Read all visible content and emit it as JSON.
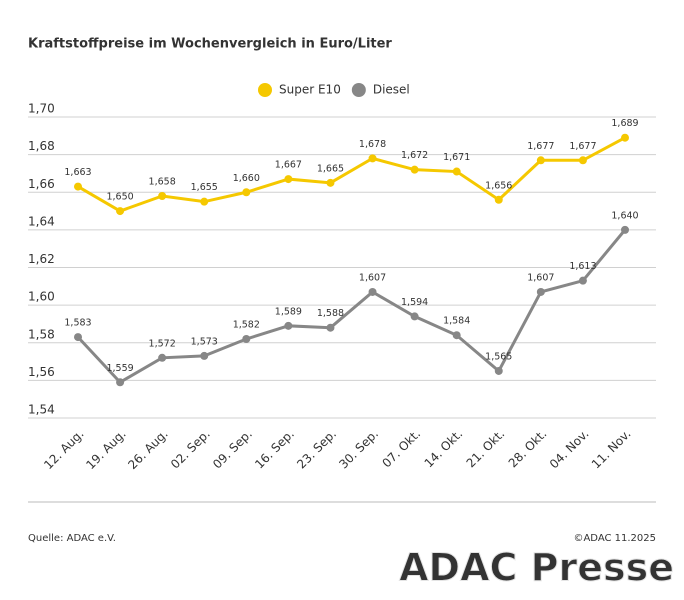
{
  "chart_data": {
    "type": "line",
    "title": "Kraftstoffpreise im Wochenvergleich in Euro/Liter",
    "categories": [
      "12. Aug.",
      "19. Aug.",
      "26. Aug.",
      "02. Sep.",
      "09. Sep.",
      "16. Sep.",
      "23. Sep.",
      "30. Sep.",
      "07. Okt.",
      "14. Okt.",
      "21. Okt.",
      "28. Okt.",
      "04. Nov.",
      "11. Nov."
    ],
    "series": [
      {
        "name": "Super E10",
        "color": "#f5c800",
        "values": [
          1.663,
          1.65,
          1.658,
          1.655,
          1.66,
          1.667,
          1.665,
          1.678,
          1.672,
          1.671,
          1.656,
          1.677,
          1.677,
          1.689
        ],
        "value_labels": [
          "1,663",
          "1,650",
          "1,658",
          "1,655",
          "1,660",
          "1,667",
          "1,665",
          "1,678",
          "1,672",
          "1,671",
          "1,656",
          "1,677",
          "1,677",
          "1,689"
        ]
      },
      {
        "name": "Diesel",
        "color": "#878787",
        "values": [
          1.583,
          1.559,
          1.572,
          1.573,
          1.582,
          1.589,
          1.588,
          1.607,
          1.594,
          1.584,
          1.565,
          1.607,
          1.613,
          1.64
        ],
        "value_labels": [
          "1,583",
          "1,559",
          "1,572",
          "1,573",
          "1,582",
          "1,589",
          "1,588",
          "1,607",
          "1,594",
          "1,584",
          "1,565",
          "1,607",
          "1,613",
          "1,640"
        ]
      }
    ],
    "ylim": [
      1.54,
      1.7
    ],
    "yticks": [
      {
        "value": 1.54,
        "label": "1,54"
      },
      {
        "value": 1.56,
        "label": "1,56"
      },
      {
        "value": 1.58,
        "label": "1,58"
      },
      {
        "value": 1.6,
        "label": "1,60"
      },
      {
        "value": 1.62,
        "label": "1,62"
      },
      {
        "value": 1.64,
        "label": "1,64"
      },
      {
        "value": 1.66,
        "label": "1,66"
      },
      {
        "value": 1.68,
        "label": "1,68"
      },
      {
        "value": 1.7,
        "label": "1,70"
      }
    ],
    "grid": true,
    "legend": "top",
    "source": "Quelle: ADAC e.V.",
    "copyright": "©ADAC 11.2025",
    "watermark": "ADAC Presse"
  }
}
